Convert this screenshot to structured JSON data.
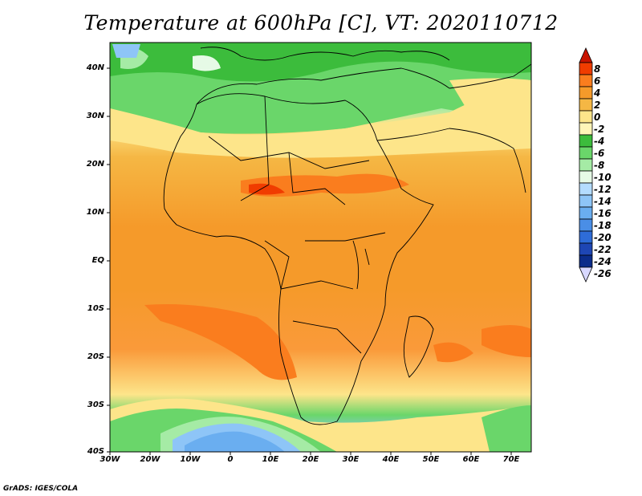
{
  "title": "Temperature at 600hPa [C], VT: 2020110712",
  "footer": "GrADS: IGES/COLA",
  "map": {
    "lat_labels": [
      "40N",
      "30N",
      "20N",
      "10N",
      "EQ",
      "10S",
      "20S",
      "30S",
      "40S"
    ],
    "lon_labels": [
      "30W",
      "20W",
      "10W",
      "0",
      "10E",
      "20E",
      "30E",
      "40E",
      "50E",
      "60E",
      "70E"
    ]
  },
  "colorbar": {
    "labels": [
      "8",
      "6",
      "4",
      "2",
      "0",
      "-2",
      "-4",
      "-6",
      "-8",
      "-10",
      "-12",
      "-14",
      "-16",
      "-18",
      "-20",
      "-22",
      "-24",
      "-26"
    ],
    "colors": [
      "#c81400",
      "#f03c00",
      "#fa7d1e",
      "#f59a2a",
      "#f5b744",
      "#fde58a",
      "#fff5b8",
      "#3cbc3c",
      "#6ad66a",
      "#a5eba5",
      "#e6fae6",
      "#b4dcff",
      "#8ec5f7",
      "#6aaef0",
      "#4a8ee6",
      "#2e6cd8",
      "#1e46b4",
      "#0b2c8a",
      "#081870"
    ],
    "units": "C"
  }
}
